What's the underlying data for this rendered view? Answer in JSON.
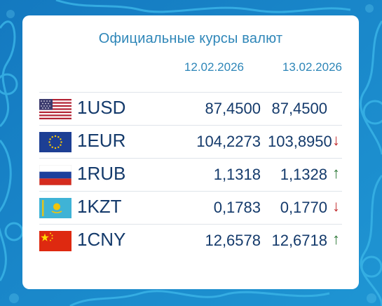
{
  "widget": {
    "title": "Официальные курсы валют",
    "dates": [
      "12.02.2026",
      "13.02.2026"
    ]
  },
  "rates": [
    {
      "code": "1USD",
      "flag": "us-flag-icon",
      "prev": "87,4500",
      "curr": "87,4500",
      "trend": ""
    },
    {
      "code": "1EUR",
      "flag": "eu-flag-icon",
      "prev": "104,2273",
      "curr": "103,8950",
      "trend": "↓"
    },
    {
      "code": "1RUB",
      "flag": "ru-flag-icon",
      "prev": "1,1318",
      "curr": "1,1328",
      "trend": "↑"
    },
    {
      "code": "1KZT",
      "flag": "kz-flag-icon",
      "prev": "0,1783",
      "curr": "0,1770",
      "trend": "↓"
    },
    {
      "code": "1CNY",
      "flag": "cn-flag-icon",
      "prev": "12,6578",
      "curr": "12,6718",
      "trend": "↑"
    }
  ],
  "colors": {
    "accent": "#2e86b8",
    "text": "#143a6b",
    "down": "#c0282a",
    "up": "#2f7a3a",
    "background": "#1a86c8"
  }
}
